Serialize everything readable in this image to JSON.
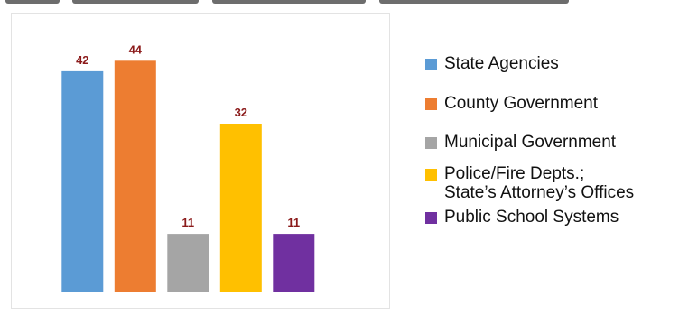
{
  "chart_data": {
    "type": "bar",
    "title": "",
    "xlabel": "",
    "ylabel": "",
    "ylim": [
      0,
      48
    ],
    "grid": false,
    "legend_position": "right",
    "categories": [
      "State Agencies",
      "County Government",
      "Municipal Government",
      "Police/Fire Depts.;\nState’s Attorney’s Offices",
      "Public School Systems"
    ],
    "values": [
      42,
      44,
      11,
      32,
      11
    ],
    "colors": [
      "#5b9bd5",
      "#ed7d31",
      "#a5a5a5",
      "#ffc000",
      "#7030a0"
    ],
    "data_label_color": "#8b1a1a"
  }
}
